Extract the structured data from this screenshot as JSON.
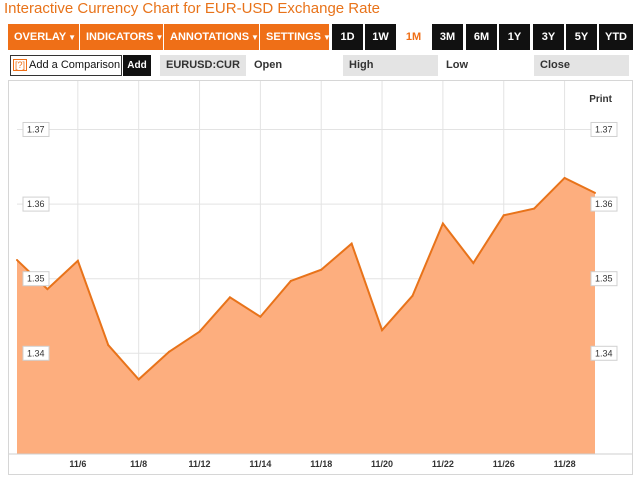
{
  "title": "Interactive Currency Chart for EUR-USD Exchange Rate",
  "toolbar": {
    "menus": [
      {
        "label": "OVERLAY",
        "caret": "▼"
      },
      {
        "label": "INDICATORS",
        "caret": "▼"
      },
      {
        "label": "ANNOTATIONS",
        "caret": "▼"
      },
      {
        "label": "SETTINGS",
        "caret": "▼"
      }
    ],
    "ranges": [
      "1D",
      "1W",
      "1M",
      "3M",
      "6M",
      "1Y",
      "3Y",
      "5Y",
      "YTD"
    ],
    "active_range": "1M"
  },
  "compare": {
    "help": "?",
    "label": "Add a Comparison",
    "add_label": "Add"
  },
  "quote": {
    "symbol": "EURUSD:CUR",
    "open_label": "Open",
    "high_label": "High",
    "low_label": "Low",
    "close_label": "Close"
  },
  "print_label": "Print",
  "colors": {
    "accent": "#ef6f17",
    "area_fill": "#fdae7e",
    "line": "#e8731a"
  },
  "chart_data": {
    "type": "area",
    "x": [
      "11/4",
      "11/5",
      "11/6",
      "11/7",
      "11/8",
      "11/11",
      "11/12",
      "11/13",
      "11/14",
      "11/15",
      "11/18",
      "11/19",
      "11/20",
      "11/21",
      "11/22",
      "11/25",
      "11/26",
      "11/27",
      "11/28",
      "11/29"
    ],
    "values": [
      1.3525,
      1.3486,
      1.3524,
      1.3411,
      1.3365,
      1.3402,
      1.3429,
      1.3475,
      1.3449,
      1.3497,
      1.3512,
      1.3547,
      1.3431,
      1.3477,
      1.3574,
      1.3521,
      1.3585,
      1.3594,
      1.3635,
      1.3615
    ],
    "xticks": [
      "11/6",
      "11/8",
      "11/12",
      "11/14",
      "11/18",
      "11/20",
      "11/22",
      "11/26",
      "11/28"
    ],
    "yticks": [
      1.34,
      1.35,
      1.36,
      1.37
    ],
    "ylim": [
      1.3265,
      1.3765
    ],
    "grid": true
  }
}
